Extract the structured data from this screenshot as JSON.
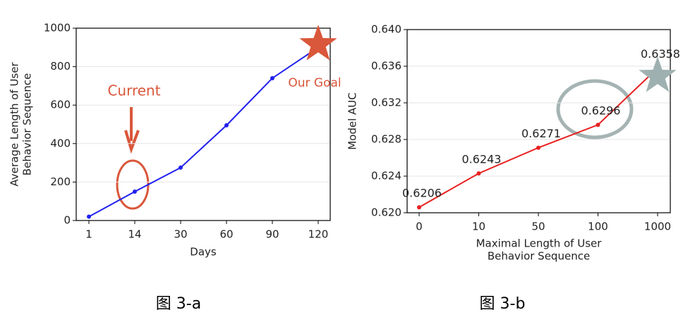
{
  "chart_data": [
    {
      "type": "line",
      "caption": "图 3-a",
      "ylabel": [
        "Average Length of User",
        "Behavior Sequence"
      ],
      "xlabel": [
        "Days"
      ],
      "categories": [
        "1",
        "14",
        "30",
        "60",
        "90",
        "120"
      ],
      "series": [
        {
          "color": "#2020ee",
          "values": [
            20,
            150,
            275,
            495,
            740,
            900
          ]
        }
      ],
      "ylim": [
        0,
        1000
      ],
      "yticks": [
        0,
        200,
        400,
        600,
        800,
        1000
      ],
      "grid": true,
      "annotations": [
        "Current",
        "Our Goal"
      ]
    },
    {
      "type": "line",
      "caption": "图 3-b",
      "ylabel": [
        "Model AUC"
      ],
      "xlabel": [
        "Maximal Length of User",
        "Behavior Sequence"
      ],
      "categories": [
        "0",
        "10",
        "50",
        "100",
        "1000"
      ],
      "series": [
        {
          "color": "#e82020",
          "values": [
            0.6206,
            0.6243,
            0.6271,
            0.6296,
            0.6358
          ]
        }
      ],
      "ylim": [
        0.62,
        0.64
      ],
      "yticks": [
        {
          "value": 0.62,
          "label": "0.620"
        },
        {
          "value": 0.624,
          "label": "0.624"
        },
        {
          "value": 0.628,
          "label": "0.628"
        },
        {
          "value": 0.632,
          "label": "0.632"
        },
        {
          "value": 0.636,
          "label": "0.636"
        },
        {
          "value": 0.64,
          "label": "0.640"
        }
      ],
      "grid": true,
      "data_labels": true
    }
  ]
}
